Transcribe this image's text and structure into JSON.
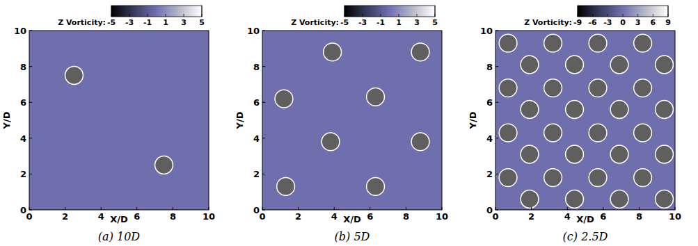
{
  "chart_data": [
    {
      "type": "scatter",
      "title": "(a) 10D",
      "x_label": "X/D",
      "y_label": "Y/D",
      "x": [
        2.5,
        7.5
      ],
      "y": [
        7.5,
        2.5
      ],
      "diameter": 1,
      "color": "#5f5f5f",
      "xlim": [
        0,
        10
      ],
      "ylim": [
        0,
        10
      ],
      "xticks": [
        0,
        2,
        4,
        6,
        8,
        10
      ],
      "yticks": [
        0,
        2,
        4,
        6,
        8,
        10
      ],
      "colorbar": {
        "label": "Z Vorticity:",
        "range": [
          -5,
          5
        ],
        "ticks": [
          -5,
          -3,
          -1,
          1,
          3,
          5
        ]
      }
    },
    {
      "type": "scatter",
      "title": "(b) 5D",
      "x_label": "X/D",
      "y_label": "Y/D",
      "x": [
        3.9,
        8.8,
        1.2,
        6.3,
        3.8,
        8.8,
        1.3,
        6.3
      ],
      "y": [
        8.8,
        8.8,
        6.2,
        6.3,
        3.8,
        3.8,
        1.3,
        1.3
      ],
      "diameter": 1,
      "color": "#5f5f5f",
      "xlim": [
        0,
        10
      ],
      "ylim": [
        0,
        10
      ],
      "xticks": [
        0,
        2,
        4,
        6,
        8,
        10
      ],
      "yticks": [
        0,
        2,
        4,
        6,
        8,
        10
      ],
      "colorbar": {
        "label": "Z Vorticity:",
        "range": [
          -5,
          5
        ],
        "ticks": [
          -5,
          -3,
          -1,
          1,
          3,
          5
        ]
      }
    },
    {
      "type": "scatter",
      "title": "(c) 2.5D",
      "x_label": "X/D",
      "y_label": "Y/D",
      "x": [
        0.7,
        3.2,
        5.7,
        8.2,
        1.9,
        4.4,
        6.9,
        9.4,
        0.7,
        3.2,
        5.7,
        8.2,
        1.9,
        4.4,
        6.9,
        9.4,
        0.7,
        3.2,
        5.7,
        8.2,
        1.9,
        4.4,
        6.9,
        9.4,
        0.7,
        3.2,
        5.7,
        8.2,
        1.9,
        4.4,
        6.9,
        9.4
      ],
      "y": [
        9.3,
        9.3,
        9.3,
        9.3,
        8.1,
        8.1,
        8.1,
        8.1,
        6.8,
        6.8,
        6.8,
        6.8,
        5.6,
        5.6,
        5.6,
        5.6,
        4.3,
        4.3,
        4.3,
        4.3,
        3.1,
        3.1,
        3.1,
        3.1,
        1.8,
        1.8,
        1.8,
        1.8,
        0.6,
        0.6,
        0.6,
        0.6
      ],
      "diameter": 1,
      "color": "#5f5f5f",
      "xlim": [
        0,
        10
      ],
      "ylim": [
        0,
        10
      ],
      "xticks": [
        0,
        2,
        4,
        6,
        8,
        10
      ],
      "yticks": [
        0,
        2,
        4,
        6,
        8,
        10
      ],
      "colorbar": {
        "label": "Z Vorticity:",
        "range": [
          -9,
          9
        ],
        "ticks": [
          -9,
          -6,
          -3,
          0,
          3,
          6,
          9
        ]
      }
    }
  ]
}
